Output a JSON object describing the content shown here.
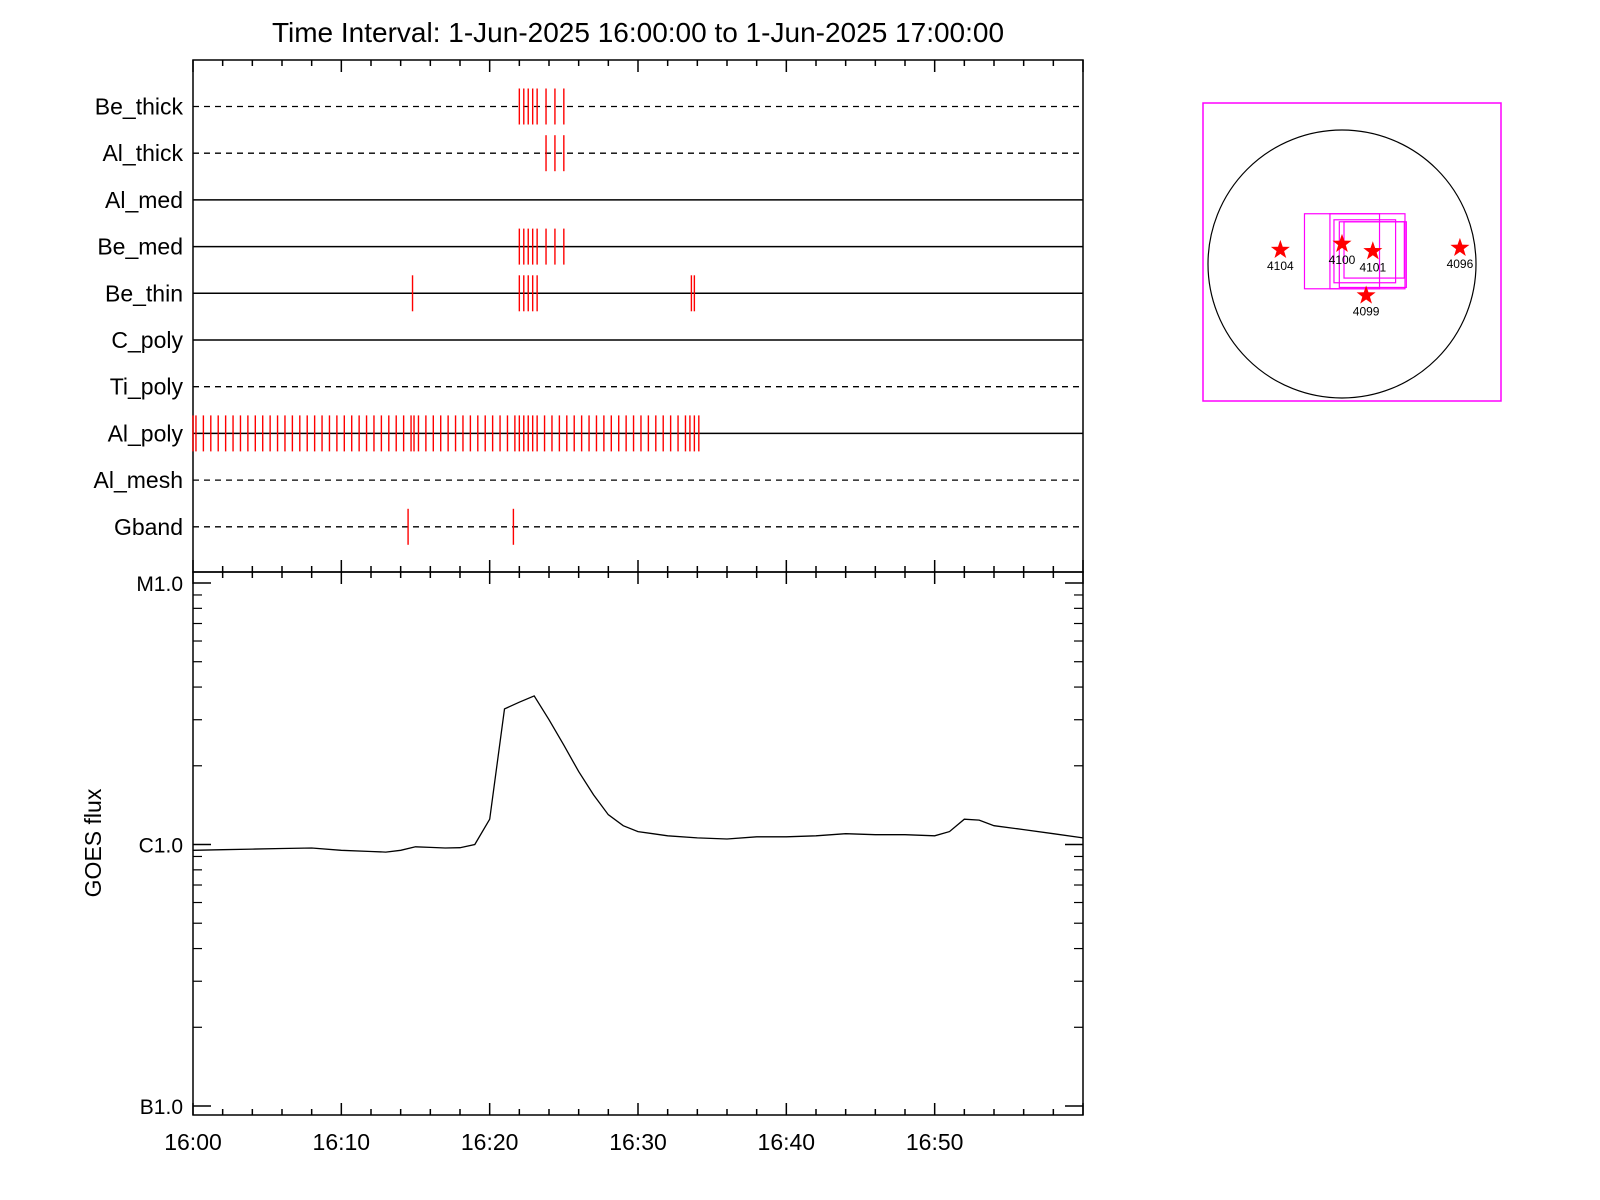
{
  "chart_data": [
    {
      "type": "event-raster",
      "title": "Time Interval:  1-Jun-2025 16:00:00 to  1-Jun-2025 17:00:00",
      "x_range_minutes": [
        0,
        60
      ],
      "color": "#ff0000",
      "channels": [
        {
          "name": "Be_thick",
          "style": "dashed",
          "events": [
            22.0,
            22.3,
            22.6,
            22.9,
            23.2,
            23.8,
            24.4,
            25.0
          ]
        },
        {
          "name": "Al_thick",
          "style": "dashed",
          "events": [
            23.8,
            24.4,
            25.0
          ]
        },
        {
          "name": "Al_med",
          "style": "solid",
          "events": []
        },
        {
          "name": "Be_med",
          "style": "solid",
          "events": [
            22.0,
            22.3,
            22.6,
            22.9,
            23.2,
            23.8,
            24.4,
            25.0
          ]
        },
        {
          "name": "Be_thin",
          "style": "solid",
          "events": [
            14.8,
            22.0,
            22.3,
            22.6,
            22.9,
            23.2,
            33.6,
            33.8
          ]
        },
        {
          "name": "C_poly",
          "style": "solid",
          "events": []
        },
        {
          "name": "Ti_poly",
          "style": "dashed",
          "events": []
        },
        {
          "name": "Al_poly",
          "style": "solid",
          "events": [
            0.0,
            0.2,
            0.7,
            1.2,
            1.7,
            2.2,
            2.7,
            3.2,
            3.7,
            4.2,
            4.7,
            5.2,
            5.7,
            6.2,
            6.7,
            7.2,
            7.7,
            8.2,
            8.7,
            9.2,
            9.7,
            10.2,
            10.7,
            11.2,
            11.7,
            12.2,
            12.7,
            13.2,
            13.7,
            14.2,
            14.7,
            14.9,
            15.2,
            15.7,
            16.2,
            16.7,
            17.2,
            17.7,
            18.2,
            18.7,
            19.2,
            19.7,
            20.2,
            20.7,
            21.2,
            21.7,
            22.0,
            22.3,
            22.6,
            22.9,
            23.2,
            23.7,
            24.2,
            24.7,
            25.2,
            25.7,
            26.2,
            26.7,
            27.2,
            27.7,
            28.2,
            28.7,
            29.2,
            29.7,
            30.2,
            30.7,
            31.2,
            31.7,
            32.2,
            32.7,
            33.2,
            33.5,
            33.8,
            34.1
          ]
        },
        {
          "name": "Al_mesh",
          "style": "dashed",
          "events": []
        },
        {
          "name": "Gband",
          "style": "dashed",
          "events": [
            14.5,
            21.6
          ]
        }
      ]
    },
    {
      "type": "line",
      "ylabel": "GOES flux",
      "y_scale": "log",
      "y_ticks": [
        {
          "label": "B1.0",
          "value": 1e-07
        },
        {
          "label": "C1.0",
          "value": 1e-06
        },
        {
          "label": "M1.0",
          "value": 1e-05
        }
      ],
      "ylim": [
        1e-07,
        1e-05
      ],
      "x_range_minutes": [
        0,
        60
      ],
      "x_ticks": [
        {
          "label": "16:00",
          "value": 0
        },
        {
          "label": "16:10",
          "value": 10
        },
        {
          "label": "16:20",
          "value": 20
        },
        {
          "label": "16:30",
          "value": 30
        },
        {
          "label": "16:40",
          "value": 40
        },
        {
          "label": "16:50",
          "value": 50
        }
      ],
      "series": [
        {
          "color": "#000000",
          "x": [
            0,
            2,
            4,
            6,
            8,
            10,
            12,
            13,
            14,
            15,
            16,
            17,
            18,
            19,
            20,
            21,
            22,
            23,
            24,
            25,
            26,
            27,
            28,
            29,
            30,
            31,
            32,
            34,
            36,
            38,
            40,
            42,
            44,
            46,
            48,
            50,
            51,
            52,
            53,
            54,
            56,
            58,
            60
          ],
          "y": [
            9.5e-07,
            9.55e-07,
            9.6e-07,
            9.65e-07,
            9.7e-07,
            9.5e-07,
            9.4e-07,
            9.35e-07,
            9.5e-07,
            9.8e-07,
            9.75e-07,
            9.7e-07,
            9.72e-07,
            1e-06,
            1.25e-06,
            3.3e-06,
            3.5e-06,
            3.7e-06,
            3e-06,
            2.4e-06,
            1.9e-06,
            1.55e-06,
            1.3e-06,
            1.18e-06,
            1.12e-06,
            1.1e-06,
            1.08e-06,
            1.06e-06,
            1.05e-06,
            1.07e-06,
            1.07e-06,
            1.08e-06,
            1.1e-06,
            1.09e-06,
            1.09e-06,
            1.08e-06,
            1.12e-06,
            1.25e-06,
            1.24e-06,
            1.18e-06,
            1.14e-06,
            1.1e-06,
            1.06e-06
          ]
        }
      ]
    },
    {
      "type": "scatter",
      "disk": {
        "radius_arcsec": 1000
      },
      "marker_color": "#ff0000",
      "box_color": "#ff00ff",
      "regions": [
        {
          "label": "4104",
          "x": -460,
          "y": 105
        },
        {
          "label": "4100",
          "x": 0,
          "y": 150
        },
        {
          "label": "4101",
          "x": 230,
          "y": 95
        },
        {
          "label": "4096",
          "x": 880,
          "y": 120
        },
        {
          "label": "4099",
          "x": 180,
          "y": -235
        }
      ],
      "fov_boxes": [
        {
          "x": 0,
          "y": 95,
          "w": 560,
          "h": 560
        },
        {
          "x": 190,
          "y": 95,
          "w": 560,
          "h": 560
        },
        {
          "x": 230,
          "y": 70,
          "w": 500,
          "h": 490
        },
        {
          "x": 170,
          "y": 95,
          "w": 460,
          "h": 470
        },
        {
          "x": 240,
          "y": 105,
          "w": 450,
          "h": 420
        }
      ]
    }
  ]
}
